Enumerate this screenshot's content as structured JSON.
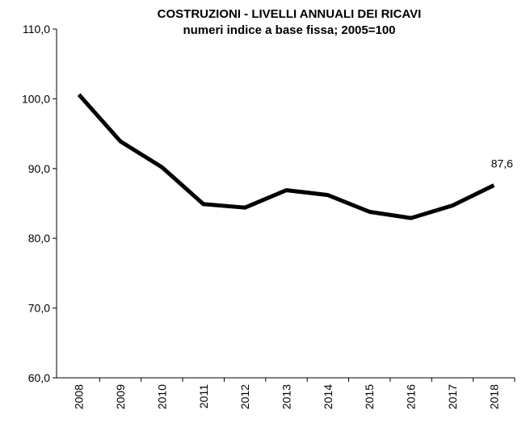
{
  "chart_data": {
    "type": "line",
    "title": "COSTRUZIONI - LIVELLI ANNUALI  DEI RICAVI",
    "subtitle": "numeri indice a base fissa;  2005=100",
    "categories": [
      "2008",
      "2009",
      "2010",
      "2011",
      "2012",
      "2013",
      "2014",
      "2015",
      "2016",
      "2017",
      "2018"
    ],
    "series": [
      {
        "color": "#000000",
        "values": [
          100.6,
          93.9,
          90.2,
          84.9,
          84.4,
          86.9,
          86.2,
          83.8,
          82.9,
          84.7,
          87.6
        ],
        "value_labels": [
          null,
          null,
          null,
          null,
          null,
          null,
          null,
          null,
          null,
          null,
          "87,6"
        ]
      }
    ],
    "ylim": [
      60,
      110
    ],
    "yticks": [
      {
        "value": 60,
        "label": "60,0"
      },
      {
        "value": 70,
        "label": "70,0"
      },
      {
        "value": 80,
        "label": "80,0"
      },
      {
        "value": 90,
        "label": "90,0"
      },
      {
        "value": 100,
        "label": "100,0"
      },
      {
        "value": 110,
        "label": "110,0"
      }
    ],
    "grid": false
  }
}
